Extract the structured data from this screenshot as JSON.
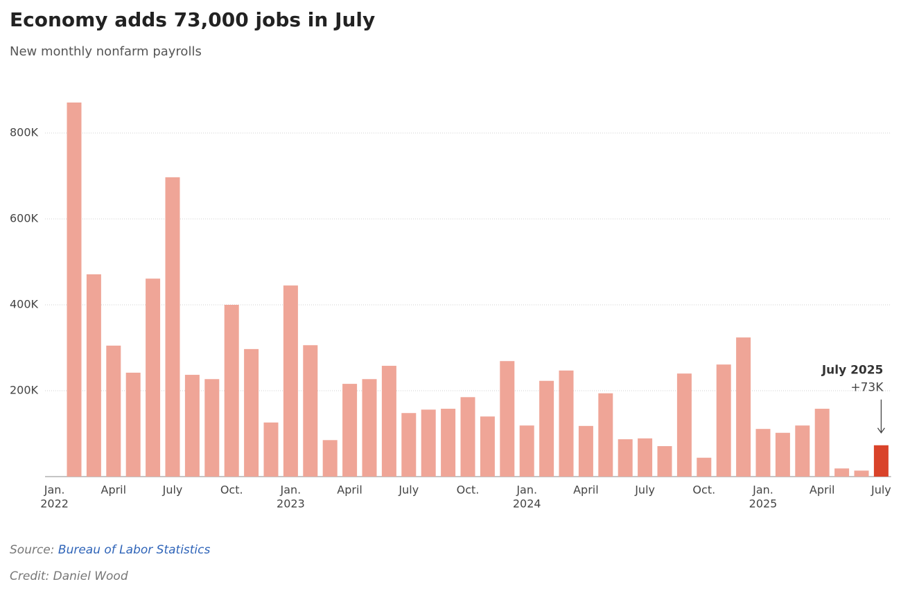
{
  "chart_data": {
    "type": "bar",
    "title": "Economy adds 73,000 jobs in July",
    "subtitle": "New monthly nonfarm payrolls",
    "categories": [
      "Jan.",
      null,
      null,
      "April",
      null,
      null,
      "July",
      null,
      null,
      "Oct.",
      null,
      null,
      "Jan.",
      null,
      null,
      "April",
      null,
      null,
      "July",
      null,
      null,
      "Oct.",
      null,
      null,
      "Jan.",
      null,
      null,
      "April",
      null,
      null,
      "July",
      null,
      null,
      "Oct.",
      null,
      null,
      "Jan.",
      null,
      null,
      "April",
      null,
      null,
      "July"
    ],
    "category_years": [
      "2022",
      null,
      null,
      null,
      null,
      null,
      null,
      null,
      null,
      null,
      null,
      null,
      "2023",
      null,
      null,
      null,
      null,
      null,
      null,
      null,
      null,
      null,
      null,
      null,
      "2024",
      null,
      null,
      null,
      null,
      null,
      null,
      null,
      null,
      null,
      null,
      null,
      "2025",
      null,
      null,
      null,
      null,
      null,
      null
    ],
    "values": [
      null,
      871000,
      471000,
      305000,
      242000,
      461000,
      697000,
      237000,
      227000,
      400000,
      297000,
      126000,
      445000,
      306000,
      85000,
      216000,
      227000,
      258000,
      148000,
      156000,
      158000,
      185000,
      140000,
      269000,
      119000,
      223000,
      247000,
      118000,
      194000,
      87000,
      89000,
      71000,
      240000,
      44000,
      261000,
      324000,
      111000,
      102000,
      119000,
      158000,
      19000,
      14000,
      73000
    ],
    "color": "#efa597",
    "highlight": {
      "index": 42,
      "color": "#d9432a",
      "title": "July 2025",
      "label": "+73K"
    },
    "ylim": [
      0,
      900000
    ],
    "yticks": [
      {
        "value": 200000,
        "label": "200K"
      },
      {
        "value": 400000,
        "label": "400K"
      },
      {
        "value": 600000,
        "label": "600K"
      },
      {
        "value": 800000,
        "label": "800K"
      }
    ],
    "grid": true,
    "source": {
      "prefix": "Source:",
      "name": "Bureau of Labor Statistics"
    },
    "credit": "Credit: Daniel Wood"
  }
}
